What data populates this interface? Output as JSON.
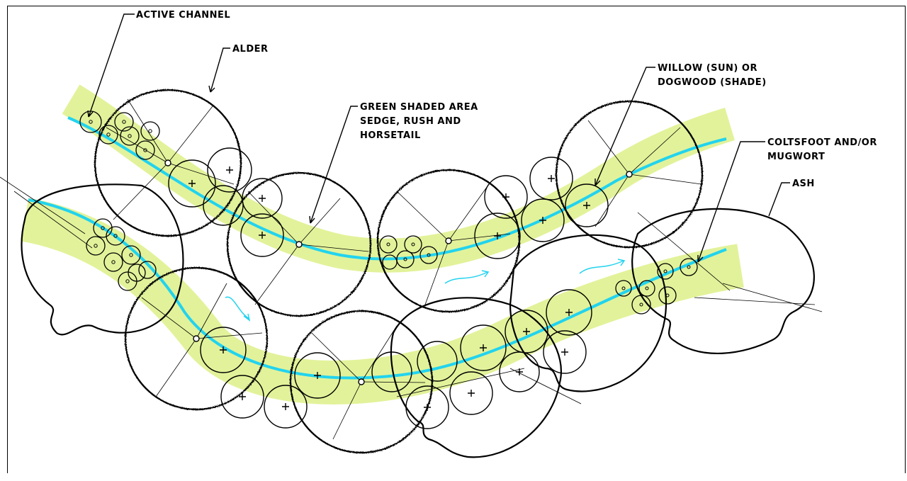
{
  "labels": {
    "active_channel": "ACTIVE CHANNEL",
    "alder": "ALDER",
    "green_area_1": "GREEN SHADED AREA",
    "green_area_2": "SEDGE, RUSH AND",
    "green_area_3": "HORSETAIL",
    "willow_1": "WILLOW (SUN) OR",
    "willow_2": "DOGWOOD (SHADE)",
    "coltsfoot_1": "COLTSFOOT AND/OR",
    "coltsfoot_2": "MUGWORT",
    "ash": "ASH"
  },
  "colors": {
    "sedge_band": "#e2f29a",
    "channel": "#22d3ee",
    "ink": "#000000",
    "flow_arrow": "#22d3ee"
  }
}
